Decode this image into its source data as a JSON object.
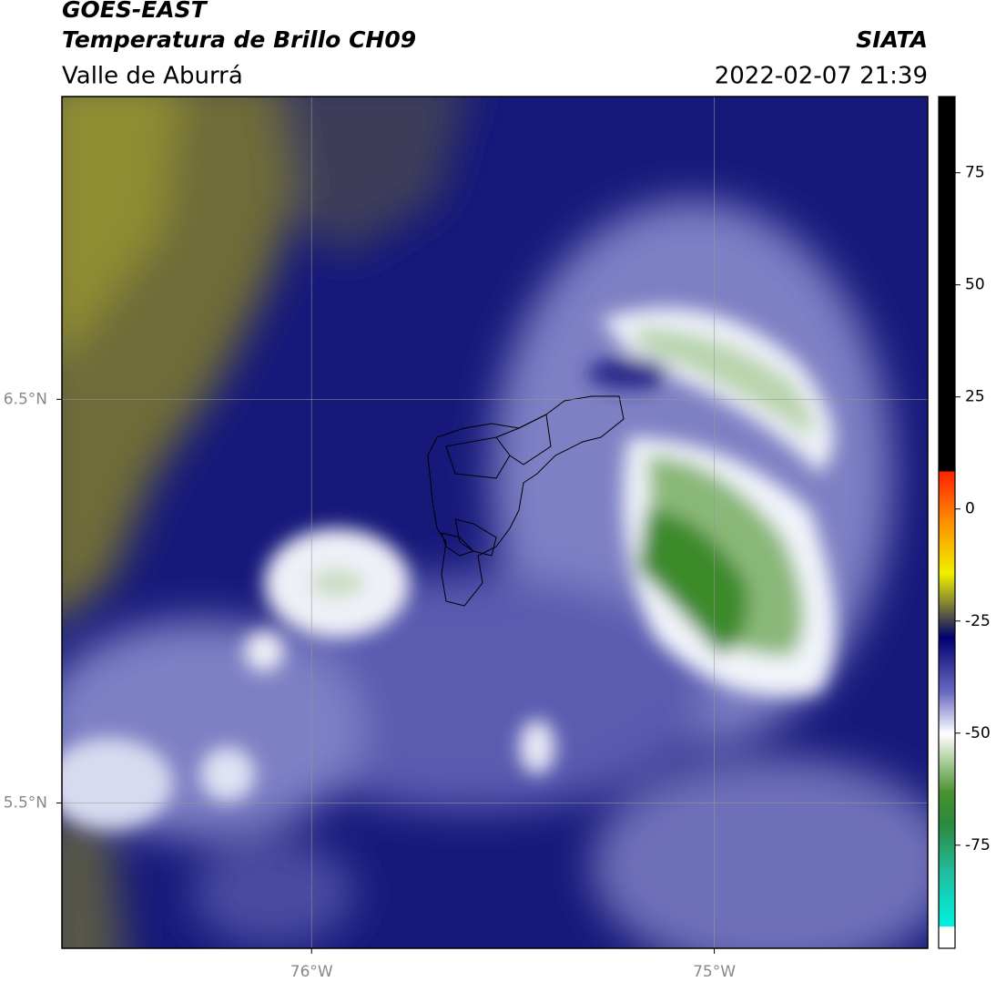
{
  "header": {
    "title": "GOES-EAST",
    "subtitle": "Temperatura de Brillo CH09",
    "region": "Valle de Aburrá",
    "source": "SIATA",
    "datetime": "2022-02-07 21:39"
  },
  "map": {
    "xlim": [
      -76.62,
      -74.47
    ],
    "ylim": [
      5.14,
      7.25
    ],
    "xticks": [
      {
        "value": -76,
        "label": "76°W"
      },
      {
        "value": -75,
        "label": "75°W"
      }
    ],
    "yticks": [
      {
        "value": 6.5,
        "label": "6.5°N"
      },
      {
        "value": 5.5,
        "label": "5.5°N"
      }
    ]
  },
  "colorbar": {
    "lim": [
      -98,
      92
    ],
    "ticks": [
      75,
      50,
      25,
      0,
      -25,
      -50,
      -75
    ]
  }
}
